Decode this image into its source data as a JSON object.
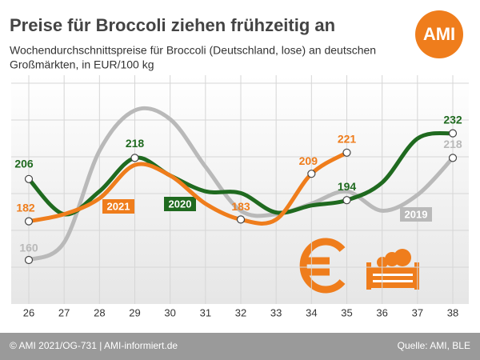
{
  "header": {
    "title": "Preise für Broccoli ziehen frühzeitig an",
    "subtitle": [
      "Wochendurchschnittspreise für Broccoli (Deutschland, lose) an deutschen",
      "Großmärkten, in EUR/100 kg"
    ],
    "logo": "AMI"
  },
  "chart_data": {
    "type": "line",
    "categories": [
      "26",
      "27",
      "28",
      "29",
      "30",
      "31",
      "32",
      "33",
      "34",
      "35",
      "36",
      "37",
      "38"
    ],
    "ylim": [
      135,
      265
    ],
    "grid": true,
    "series": [
      {
        "name": "2019",
        "color": "#b9b9b9",
        "values": [
          160,
          170,
          222,
          245,
          240,
          213,
          188,
          186,
          192,
          199,
          188,
          197,
          218
        ],
        "value_labels": [
          "160",
          null,
          null,
          null,
          null,
          null,
          null,
          null,
          null,
          null,
          null,
          null,
          "218"
        ]
      },
      {
        "name": "2020",
        "color": "#1f6a1f",
        "values": [
          206,
          186,
          199,
          218,
          208,
          199,
          198,
          187,
          191,
          194,
          204,
          229,
          232
        ],
        "value_labels": [
          "206",
          null,
          null,
          "218",
          null,
          null,
          null,
          null,
          null,
          "194",
          null,
          null,
          "232"
        ]
      },
      {
        "name": "2021",
        "color": "#ef7d1c",
        "values": [
          182,
          186,
          195,
          214,
          208,
          192,
          183,
          183,
          209,
          221,
          null,
          null,
          null
        ],
        "value_labels": [
          "182",
          null,
          null,
          null,
          null,
          null,
          "183",
          null,
          "209",
          "221",
          null,
          null,
          null
        ]
      }
    ]
  },
  "footer": {
    "left": "© AMI 2021/OG-731 | AMI-informiert.de",
    "right": "Quelle: AMI, BLE"
  }
}
